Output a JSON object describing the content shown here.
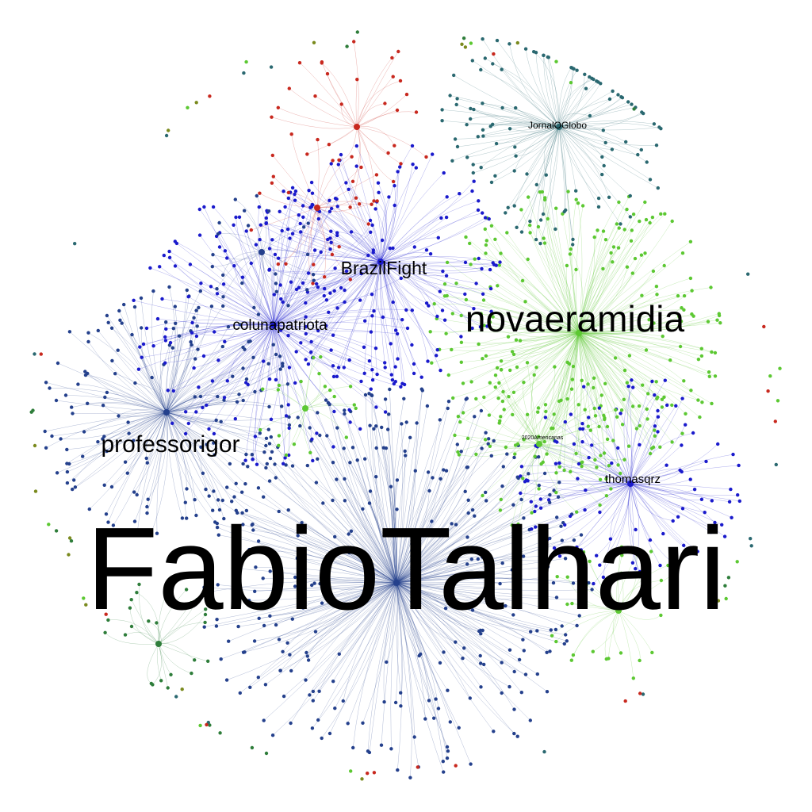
{
  "graph": {
    "type": "network",
    "background": "#ffffff",
    "cluster_colors": {
      "blue": "#1a1acc",
      "navy": "#24408c",
      "green": "#5cc832",
      "teal": "#2a6870",
      "red": "#c8281e",
      "dark_green": "#2e7d3a",
      "olive": "#7a8a1e"
    },
    "hubs": [
      {
        "id": "fabiotalhari",
        "label": "FabioTalhari",
        "color": "navy"
      },
      {
        "id": "novaeramidia",
        "label": "novaeramidia",
        "color": "green"
      },
      {
        "id": "professorigor",
        "label": "professorigor",
        "color": "navy"
      },
      {
        "id": "colunapatriota",
        "label": "colunapatriota",
        "color": "blue"
      },
      {
        "id": "brazilfight",
        "label": "BrazilFight",
        "color": "blue"
      },
      {
        "id": "thomasqrz",
        "label": "thomasqrz",
        "color": "blue"
      },
      {
        "id": "jornaloglobo",
        "label": "JornalOGlobo",
        "color": "teal"
      },
      {
        "id": "americanas",
        "label": "2020Americanas",
        "color": "green"
      }
    ]
  }
}
